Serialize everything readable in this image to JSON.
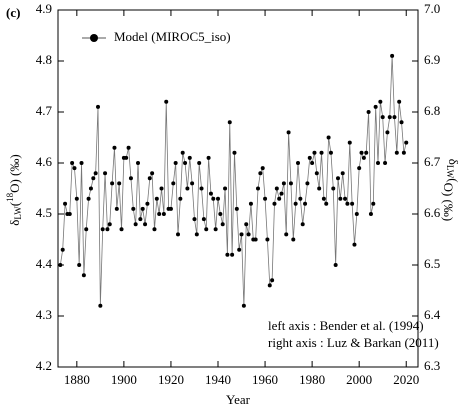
{
  "chart_data": {
    "type": "line",
    "panel_label": "(c)",
    "xlabel": "Year",
    "ylabel_parts": [
      "δ",
      "LW",
      "(",
      "18",
      "O) (‰)"
    ],
    "y2label_parts": [
      "δ",
      "LW",
      "(",
      "",
      "O) (‰)"
    ],
    "annotations": [
      "left axis   : Bender et al. (1994)",
      "right axis : Luz & Barkan (2011)"
    ],
    "xlim": [
      1872,
      2025
    ],
    "xticks": [
      1880,
      1900,
      1920,
      1940,
      1960,
      1980,
      2000,
      2020
    ],
    "ylim": [
      4.2,
      4.9
    ],
    "yticks": [
      4.2,
      4.3,
      4.4,
      4.5,
      4.6,
      4.7,
      4.8,
      4.9
    ],
    "y2lim": [
      6.3,
      7.0
    ],
    "y2ticks": [
      6.3,
      6.4,
      6.5,
      6.6,
      6.7,
      6.8,
      6.9,
      {
        "value": 7,
        "label": "7.0"
      }
    ],
    "x": [
      1873,
      1874,
      1875,
      1876,
      1877,
      1878,
      1879,
      1880,
      1881,
      1882,
      1883,
      1884,
      1885,
      1886,
      1887,
      1888,
      1889,
      1890,
      1891,
      1892,
      1893,
      1894,
      1895,
      1896,
      1897,
      1898,
      1899,
      1900,
      1901,
      1902,
      1903,
      1904,
      1905,
      1906,
      1907,
      1908,
      1909,
      1910,
      1911,
      1912,
      1913,
      1914,
      1915,
      1916,
      1917,
      1918,
      1919,
      1920,
      1921,
      1922,
      1923,
      1924,
      1925,
      1926,
      1927,
      1928,
      1929,
      1930,
      1931,
      1932,
      1933,
      1934,
      1935,
      1936,
      1937,
      1938,
      1939,
      1940,
      1941,
      1942,
      1943,
      1944,
      1945,
      1946,
      1947,
      1948,
      1949,
      1950,
      1951,
      1952,
      1953,
      1954,
      1955,
      1956,
      1957,
      1958,
      1959,
      1960,
      1961,
      1962,
      1963,
      1964,
      1965,
      1966,
      1967,
      1968,
      1969,
      1970,
      1971,
      1972,
      1973,
      1974,
      1975,
      1976,
      1977,
      1978,
      1979,
      1980,
      1981,
      1982,
      1983,
      1984,
      1985,
      1986,
      1987,
      1988,
      1989,
      1990,
      1991,
      1992,
      1993,
      1994,
      1995,
      1996,
      1997,
      1998,
      1999,
      2000,
      2001,
      2002,
      2003,
      2004,
      2005,
      2006,
      2007,
      2008,
      2009,
      2010,
      2011,
      2012,
      2013,
      2014,
      2015,
      2016,
      2017,
      2018,
      2019,
      2020
    ],
    "series": [
      {
        "name": "Model (MIROC5_iso)",
        "color": "#000000",
        "line_color": "#777777",
        "values": [
          4.4,
          4.43,
          4.52,
          4.5,
          4.5,
          4.6,
          4.59,
          4.53,
          4.4,
          4.6,
          4.38,
          4.47,
          4.53,
          4.55,
          4.57,
          4.58,
          4.71,
          4.32,
          4.47,
          4.58,
          4.47,
          4.48,
          4.56,
          4.63,
          4.51,
          4.56,
          4.47,
          4.61,
          4.61,
          4.63,
          4.57,
          4.51,
          4.48,
          4.6,
          4.49,
          4.51,
          4.48,
          4.52,
          4.57,
          4.58,
          4.47,
          4.53,
          4.5,
          4.55,
          4.5,
          4.72,
          4.51,
          4.51,
          4.56,
          4.6,
          4.46,
          4.53,
          4.62,
          4.6,
          4.55,
          4.61,
          4.56,
          4.49,
          4.46,
          4.6,
          4.55,
          4.49,
          4.47,
          4.61,
          4.54,
          4.53,
          4.47,
          4.53,
          4.5,
          4.48,
          4.55,
          4.42,
          4.68,
          4.42,
          4.62,
          4.51,
          4.43,
          4.46,
          4.32,
          4.48,
          4.46,
          4.52,
          4.45,
          4.45,
          4.55,
          4.58,
          4.59,
          4.53,
          4.45,
          4.36,
          4.37,
          4.52,
          4.55,
          4.53,
          4.54,
          4.56,
          4.46,
          4.66,
          4.56,
          4.45,
          4.52,
          4.6,
          4.53,
          4.48,
          4.52,
          4.56,
          4.61,
          4.6,
          4.62,
          4.58,
          4.55,
          4.62,
          4.53,
          4.52,
          4.65,
          4.62,
          4.55,
          4.4,
          4.57,
          4.53,
          4.58,
          4.53,
          4.52,
          4.64,
          4.52,
          4.44,
          4.5,
          4.59,
          4.62,
          4.61,
          4.62,
          4.7,
          4.5,
          4.52,
          4.71,
          4.6,
          4.72,
          4.69,
          4.6,
          4.66,
          4.69,
          4.81,
          4.69,
          4.62,
          4.72,
          4.68,
          4.62,
          4.64
        ]
      }
    ]
  }
}
